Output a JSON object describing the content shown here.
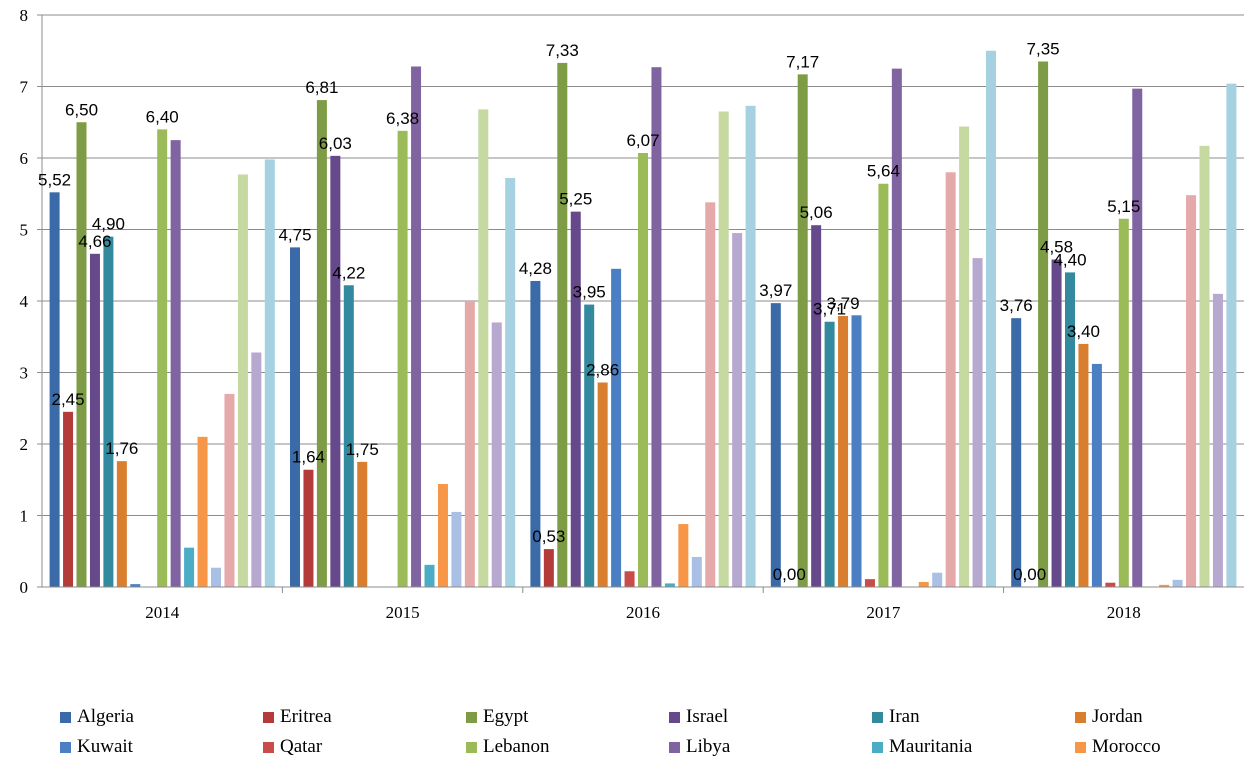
{
  "chart_data": {
    "type": "bar",
    "categories": [
      "2014",
      "2015",
      "2016",
      "2017",
      "2018"
    ],
    "ylim": [
      0,
      8
    ],
    "yticks": [
      "0",
      "1",
      "2",
      "3",
      "4",
      "5",
      "6",
      "7",
      "8"
    ],
    "grid": true,
    "legend_position": "bottom",
    "series": [
      {
        "name": "Algeria",
        "color": "#3b6aa8",
        "values": [
          5.52,
          4.75,
          4.28,
          3.97,
          3.76
        ],
        "labels": [
          "5,52",
          "4,75",
          "4,28",
          "3,97",
          "3,76"
        ]
      },
      {
        "name": "Eritrea",
        "color": "#b33c3a",
        "values": [
          2.45,
          1.64,
          0.53,
          0.0,
          0.0
        ],
        "labels": [
          "2,45",
          "1,64",
          "0,53",
          "0,00",
          "0,00"
        ]
      },
      {
        "name": "Egypt",
        "color": "#7e9c45",
        "values": [
          6.5,
          6.81,
          7.33,
          7.17,
          7.35
        ],
        "labels": [
          "6,50",
          "6,81",
          "7,33",
          "7,17",
          "7,35"
        ]
      },
      {
        "name": "Israel",
        "color": "#65498a",
        "values": [
          4.66,
          6.03,
          5.25,
          5.06,
          4.58
        ],
        "labels": [
          "4,66",
          "6,03",
          "5,25",
          "5,06",
          "4,58"
        ]
      },
      {
        "name": "Iran",
        "color": "#33899e",
        "values": [
          4.9,
          4.22,
          3.95,
          3.71,
          4.4
        ],
        "labels": [
          "4,90",
          "4,22",
          "3,95",
          "3,71",
          "4,40"
        ]
      },
      {
        "name": "Jordan",
        "color": "#d97d2f",
        "values": [
          1.76,
          1.75,
          2.86,
          3.79,
          3.4
        ],
        "labels": [
          "1,76",
          "1,75",
          "2,86",
          "3,79",
          "3,40"
        ]
      },
      {
        "name": "Kuwait",
        "color": "#4b7fc4",
        "values": [
          0.04,
          0.0,
          4.45,
          3.8,
          3.12
        ],
        "labels": []
      },
      {
        "name": "Qatar",
        "color": "#c84d4a",
        "values": [
          0.0,
          0.0,
          0.22,
          0.11,
          0.06
        ],
        "labels": []
      },
      {
        "name": "Lebanon",
        "color": "#9bbb59",
        "values": [
          6.4,
          6.38,
          6.07,
          5.64,
          5.15
        ],
        "labels": [
          "6,40",
          "6,38",
          "6,07",
          "5,64",
          "5,15"
        ]
      },
      {
        "name": "Libya",
        "color": "#8064a2",
        "values": [
          6.25,
          7.28,
          7.27,
          7.25,
          6.97
        ],
        "labels": []
      },
      {
        "name": "Mauritania",
        "color": "#4bacc6",
        "values": [
          0.55,
          0.31,
          0.05,
          0.0,
          0.0
        ],
        "labels": []
      },
      {
        "name": "Morocco",
        "color": "#f79646",
        "values": [
          2.1,
          1.44,
          0.88,
          0.07,
          0.03
        ],
        "labels": []
      },
      {
        "name": "",
        "color": "#a9c0e4",
        "values": [
          0.27,
          1.05,
          0.42,
          0.2,
          0.1
        ],
        "labels": []
      },
      {
        "name": "",
        "color": "#e6a9a9",
        "values": [
          2.7,
          4.0,
          5.38,
          5.8,
          5.48
        ],
        "labels": []
      },
      {
        "name": "",
        "color": "#c5d9a1",
        "values": [
          5.77,
          6.68,
          6.65,
          6.44,
          6.17
        ],
        "labels": []
      },
      {
        "name": "",
        "color": "#b7a8d0",
        "values": [
          3.28,
          3.7,
          4.95,
          4.6,
          4.1
        ],
        "labels": []
      },
      {
        "name": "",
        "color": "#a5d1e0",
        "values": [
          5.98,
          5.72,
          6.73,
          7.5,
          7.04
        ],
        "labels": []
      }
    ]
  }
}
